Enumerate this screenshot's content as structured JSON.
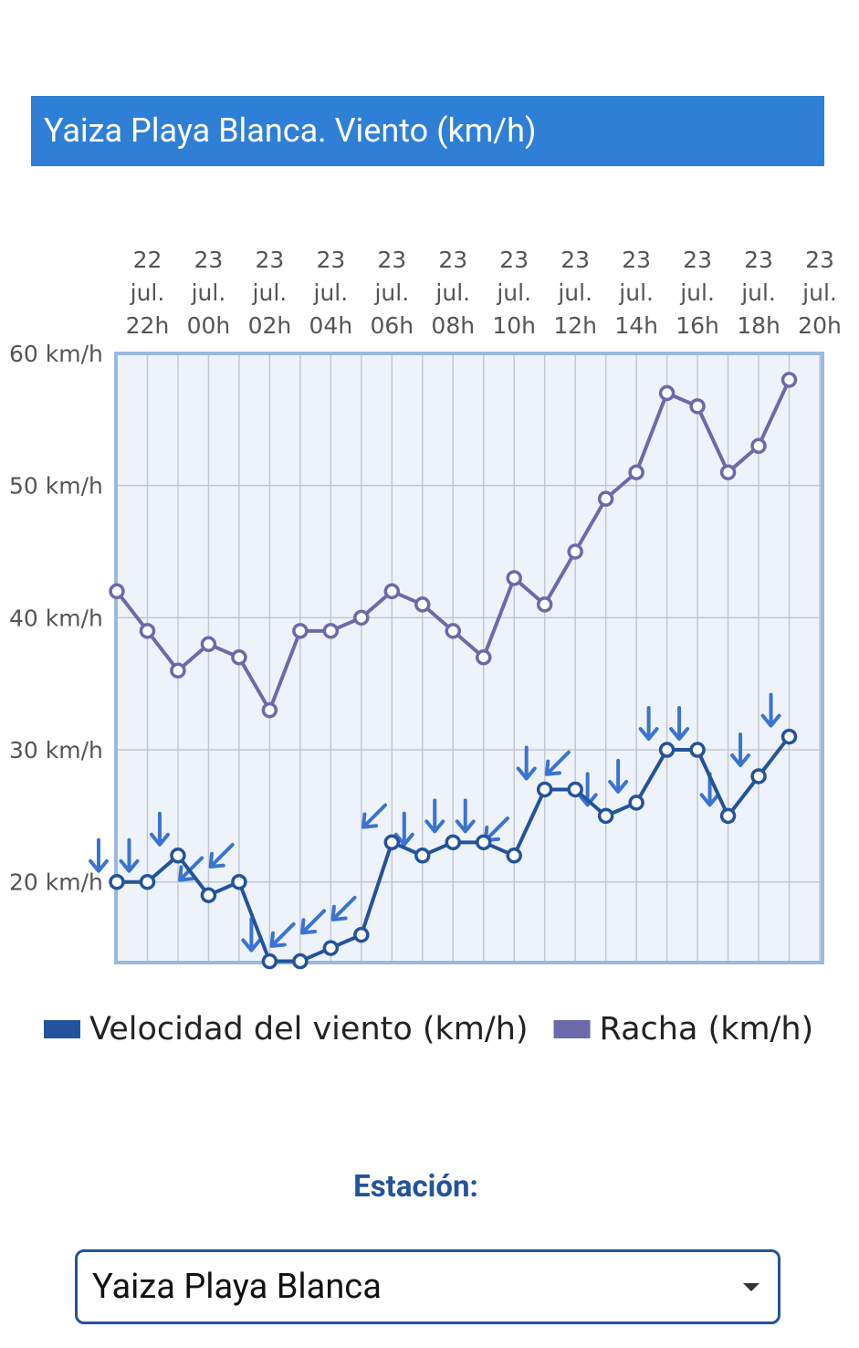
{
  "chart_data": {
    "type": "line",
    "title": "Yaiza Playa Blanca. Viento (km/h)",
    "categories": [
      null,
      "22 jul. 22h",
      null,
      "23 jul. 00h",
      null,
      "23 jul. 02h",
      null,
      "23 jul. 04h",
      null,
      "23 jul. 06h",
      null,
      "23 jul. 08h",
      null,
      "23 jul. 10h",
      null,
      "23 jul. 12h",
      null,
      "23 jul. 14h",
      null,
      "23 jul. 16h",
      null,
      "23 jul. 18h",
      null,
      "23 jul. 20h"
    ],
    "series": [
      {
        "name": "Velocidad del viento (km/h)",
        "color": "#23539c",
        "values": [
          20,
          20,
          22,
          19,
          20,
          14,
          14,
          15,
          16,
          23,
          22,
          23,
          23,
          22,
          27,
          27,
          25,
          26,
          30,
          30,
          25,
          28,
          31,
          null
        ],
        "directions": [
          0,
          0,
          0,
          45,
          45,
          0,
          45,
          45,
          45,
          45,
          0,
          0,
          0,
          45,
          0,
          45,
          0,
          0,
          0,
          0,
          0,
          0,
          0,
          null
        ],
        "direction_color": "#3b73d0"
      },
      {
        "name": "Racha (km/h)",
        "color": "#6b6aaa",
        "values": [
          42,
          39,
          36,
          38,
          37,
          33,
          39,
          39,
          40,
          42,
          41,
          39,
          37,
          43,
          41,
          45,
          49,
          51,
          57,
          56,
          51,
          53,
          58,
          null
        ]
      }
    ],
    "ylim": [
      13.9,
      60
    ],
    "yticks": [
      {
        "value": 20,
        "label": "20 km/h"
      },
      {
        "value": 30,
        "label": "30 km/h"
      },
      {
        "value": 40,
        "label": "40 km/h"
      },
      {
        "value": 50,
        "label": "50 km/h"
      },
      {
        "value": 60,
        "label": "60 km/h"
      }
    ],
    "grid": true
  },
  "station": {
    "label": "Estación:",
    "selected": "Yaiza Playa Blanca"
  }
}
